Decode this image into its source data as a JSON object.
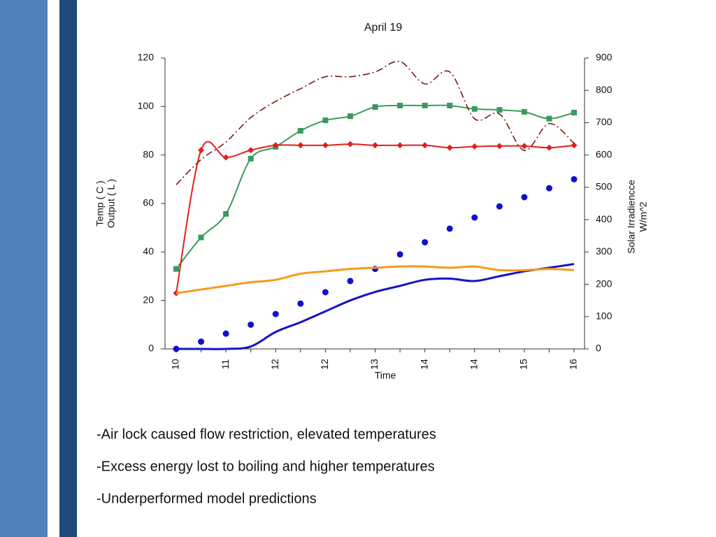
{
  "chart_data": {
    "type": "line",
    "title": "April 19",
    "ylabel": [
      "Temp ( C )",
      "Output ( L )"
    ],
    "y2label": [
      "Solar Irradiencce",
      "W/m^2"
    ],
    "xlabel": "Time",
    "categories": [
      "10",
      null,
      "11",
      null,
      "12",
      null,
      "12",
      null,
      "13",
      null,
      "14",
      null,
      "14",
      null,
      "15",
      null,
      "16"
    ],
    "ylim": [
      0,
      120
    ],
    "yticks": [
      0,
      20,
      40,
      60,
      80,
      100,
      120
    ],
    "y2lim": [
      0,
      900
    ],
    "y2ticks": [
      0,
      100,
      200,
      300,
      400,
      500,
      600,
      700,
      800,
      900
    ],
    "series": [
      {
        "color": "#3a9a5e",
        "marker": "square",
        "linestyle": "solid",
        "values": [
          33,
          46,
          55.7,
          78.5,
          83.4,
          90,
          94.3,
          96,
          99.8,
          100.4,
          100.4,
          100.4,
          99,
          98.6,
          97.8,
          95,
          97.5
        ]
      },
      {
        "color": "#e0201c",
        "marker": "diamond",
        "linestyle": "solid",
        "values": [
          23,
          82,
          79,
          82,
          84,
          84,
          84,
          84.5,
          84,
          84,
          84,
          83,
          83.5,
          83.7,
          83.7,
          83,
          84
        ]
      },
      {
        "color": "#1010d0",
        "marker": "circle",
        "linestyle": "none",
        "values": [
          0,
          3,
          6.3,
          10,
          14.4,
          18.7,
          23.4,
          28,
          33,
          39,
          44,
          49.6,
          54.2,
          58.8,
          62.6,
          66.3,
          70
        ]
      },
      {
        "color": "#1414cc",
        "marker": "none",
        "linestyle": "solid",
        "values": [
          0,
          0,
          0,
          1,
          7,
          11,
          15.5,
          20,
          23.5,
          26,
          28.5,
          29,
          28,
          30,
          32,
          33.5,
          35
        ]
      },
      {
        "color": "#f59c1a",
        "marker": "none",
        "linestyle": "solid",
        "values": [
          23,
          24.5,
          26,
          27.5,
          28.5,
          31,
          32,
          33,
          33.5,
          34,
          34,
          33.5,
          34,
          32.5,
          32.5,
          33,
          32.5
        ]
      },
      {
        "color": "#7a1a1a",
        "marker": "none",
        "linestyle": "dashdot",
        "axis": "y2",
        "values": [
          508,
          586,
          640,
          716,
          766,
          805,
          842,
          842,
          857,
          889,
          820,
          857,
          712,
          727,
          614,
          697,
          636
        ]
      }
    ]
  },
  "bullets": [
    "-Air lock caused flow restriction, elevated temperatures",
    "-Excess energy lost to boiling and higher temperatures",
    "-Underperformed model predictions"
  ]
}
